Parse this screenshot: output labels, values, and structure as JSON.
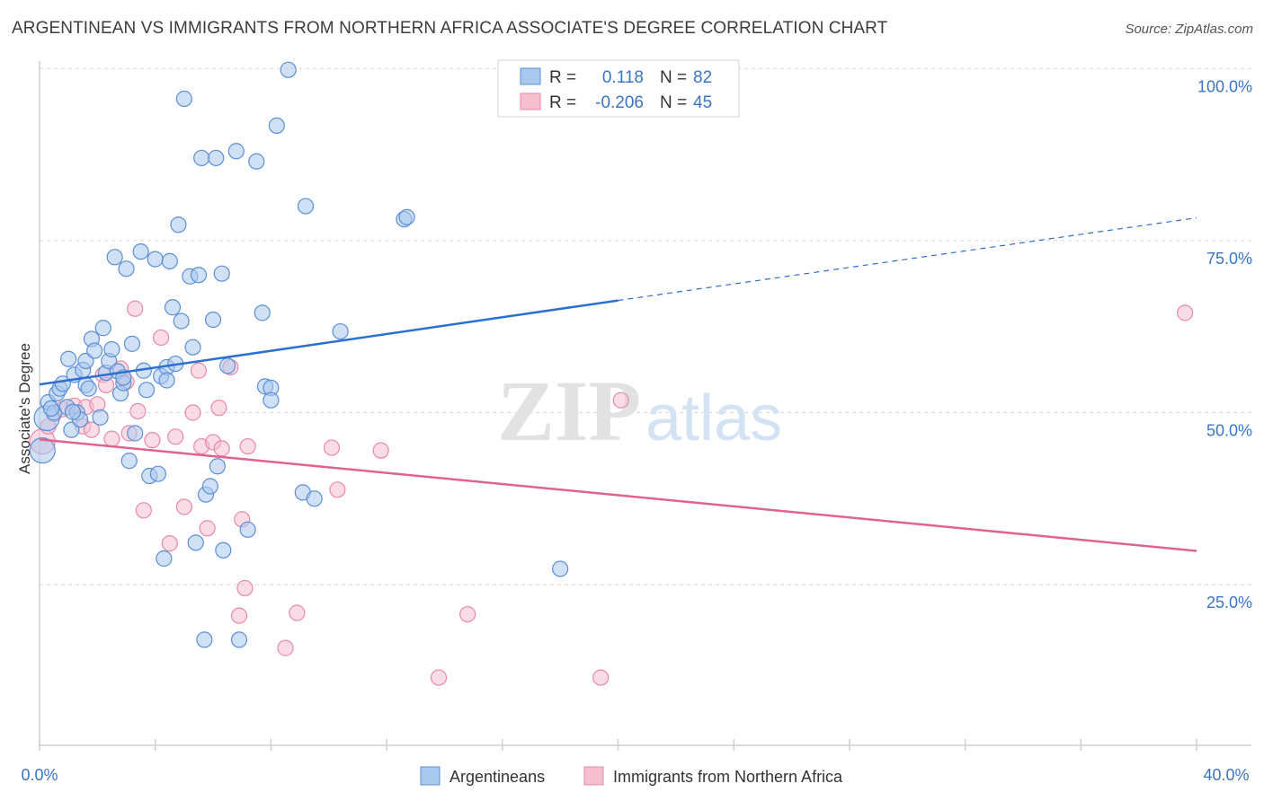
{
  "header": {
    "title": "ARGENTINEAN VS IMMIGRANTS FROM NORTHERN AFRICA ASSOCIATE'S DEGREE CORRELATION CHART",
    "source": "Source: ZipAtlas.com"
  },
  "watermark": {
    "zip": "ZIP",
    "atlas": "atlas"
  },
  "legend_box": {
    "rows": [
      {
        "r_label": "R =",
        "r_value": "0.118",
        "n_label": "N =",
        "n_value": "82"
      },
      {
        "r_label": "R =",
        "r_value": "-0.206",
        "n_label": "N =",
        "n_value": "45"
      }
    ]
  },
  "bottom_legend": {
    "items": [
      "Argentineans",
      "Immigrants from Northern Africa"
    ]
  },
  "colors": {
    "blue_fill": "#a9c8ee",
    "blue_stroke": "#5b8fd6",
    "blue_line": "#2b6fd1",
    "pink_fill": "#f6bfd0",
    "pink_stroke": "#e889a8",
    "pink_line": "#e0628e",
    "tick_text": "#3a74c4",
    "grid": "#d8d8d8"
  },
  "chart_data": {
    "type": "scatter",
    "title": "ARGENTINEAN VS IMMIGRANTS FROM NORTHERN AFRICA ASSOCIATE'S DEGREE CORRELATION CHART",
    "xlabel": "",
    "ylabel": "Associate's Degree",
    "xlim": [
      0,
      40
    ],
    "ylim": [
      0,
      100
    ],
    "x_tick_labels": [
      "0.0%",
      "40.0%"
    ],
    "y_ticks": [
      25,
      50,
      75,
      100
    ],
    "y_tick_labels": [
      "25.0%",
      "50.0%",
      "75.0%",
      "100.0%"
    ],
    "grid": true,
    "legend_position": "top-center",
    "series": [
      {
        "name": "Argentineans",
        "r": 0.118,
        "n": 82,
        "trend": {
          "x0": 0,
          "y0": 54.1,
          "x1": 20,
          "y1": 66.3,
          "dash_to_x": 40,
          "dash_to_y": 78.3
        },
        "points": [
          [
            0.1,
            44.5
          ],
          [
            0.25,
            49.2
          ],
          [
            0.3,
            51.5
          ],
          [
            0.5,
            50.0
          ],
          [
            0.6,
            52.8
          ],
          [
            0.7,
            53.5
          ],
          [
            0.8,
            54.2
          ],
          [
            0.95,
            50.8
          ],
          [
            1.0,
            57.8
          ],
          [
            1.1,
            47.5
          ],
          [
            1.2,
            55.5
          ],
          [
            1.3,
            50.0
          ],
          [
            1.4,
            49.0
          ],
          [
            1.5,
            56.2
          ],
          [
            1.6,
            54.0
          ],
          [
            1.6,
            57.5
          ],
          [
            1.8,
            60.7
          ],
          [
            1.9,
            59.0
          ],
          [
            2.1,
            49.3
          ],
          [
            2.2,
            62.3
          ],
          [
            2.3,
            55.8
          ],
          [
            2.4,
            57.5
          ],
          [
            2.5,
            59.2
          ],
          [
            2.6,
            72.6
          ],
          [
            2.7,
            56.0
          ],
          [
            2.8,
            52.8
          ],
          [
            2.9,
            54.3
          ],
          [
            3.0,
            70.9
          ],
          [
            3.1,
            43.0
          ],
          [
            3.2,
            60.0
          ],
          [
            3.3,
            47.0
          ],
          [
            3.5,
            73.4
          ],
          [
            3.6,
            56.1
          ],
          [
            3.7,
            53.3
          ],
          [
            3.8,
            40.8
          ],
          [
            4.0,
            72.3
          ],
          [
            4.1,
            41.1
          ],
          [
            4.2,
            55.3
          ],
          [
            4.3,
            28.8
          ],
          [
            4.4,
            56.6
          ],
          [
            4.5,
            72.0
          ],
          [
            4.6,
            65.3
          ],
          [
            4.7,
            57.1
          ],
          [
            4.8,
            77.3
          ],
          [
            4.9,
            63.3
          ],
          [
            5.0,
            95.6
          ],
          [
            5.2,
            69.8
          ],
          [
            5.3,
            59.5
          ],
          [
            5.4,
            31.1
          ],
          [
            5.5,
            70.0
          ],
          [
            5.6,
            87.0
          ],
          [
            5.7,
            17.0
          ],
          [
            5.75,
            38.1
          ],
          [
            5.9,
            39.3
          ],
          [
            6.0,
            63.5
          ],
          [
            6.1,
            87.0
          ],
          [
            6.15,
            42.2
          ],
          [
            6.3,
            70.2
          ],
          [
            6.35,
            30.0
          ],
          [
            6.5,
            56.8
          ],
          [
            6.8,
            88.0
          ],
          [
            6.9,
            17.0
          ],
          [
            7.2,
            33.0
          ],
          [
            7.5,
            86.5
          ],
          [
            7.7,
            64.5
          ],
          [
            7.8,
            53.8
          ],
          [
            8.0,
            53.6
          ],
          [
            8.0,
            51.8
          ],
          [
            8.2,
            91.7
          ],
          [
            8.6,
            99.8
          ],
          [
            9.1,
            38.4
          ],
          [
            9.2,
            80.0
          ],
          [
            9.5,
            37.5
          ],
          [
            10.4,
            61.8
          ],
          [
            12.6,
            78.1
          ],
          [
            12.7,
            78.4
          ],
          [
            18.0,
            27.3
          ],
          [
            0.4,
            50.6
          ],
          [
            1.7,
            53.5
          ],
          [
            2.9,
            55.1
          ],
          [
            4.4,
            54.7
          ],
          [
            1.15,
            50.1
          ]
        ]
      },
      {
        "name": "Immigrants from Northern Africa",
        "r": -0.206,
        "n": 45,
        "trend": {
          "x0": 0,
          "y0": 46.1,
          "x1": 40,
          "y1": 29.9
        },
        "points": [
          [
            0.1,
            45.8
          ],
          [
            0.3,
            48.0
          ],
          [
            0.5,
            49.8
          ],
          [
            0.8,
            50.5
          ],
          [
            1.2,
            51.0
          ],
          [
            1.5,
            48.0
          ],
          [
            1.6,
            50.8
          ],
          [
            1.8,
            47.5
          ],
          [
            2.0,
            51.2
          ],
          [
            2.2,
            55.5
          ],
          [
            2.3,
            54.0
          ],
          [
            2.5,
            46.2
          ],
          [
            2.8,
            56.4
          ],
          [
            3.0,
            54.5
          ],
          [
            3.1,
            47.0
          ],
          [
            3.3,
            65.1
          ],
          [
            3.4,
            50.2
          ],
          [
            3.6,
            35.8
          ],
          [
            3.9,
            46.0
          ],
          [
            4.2,
            60.9
          ],
          [
            4.5,
            31.0
          ],
          [
            4.7,
            46.5
          ],
          [
            5.0,
            36.3
          ],
          [
            5.3,
            50.0
          ],
          [
            5.5,
            56.1
          ],
          [
            5.6,
            45.1
          ],
          [
            5.8,
            33.2
          ],
          [
            6.0,
            45.7
          ],
          [
            6.2,
            50.7
          ],
          [
            6.3,
            44.8
          ],
          [
            6.6,
            56.6
          ],
          [
            6.9,
            20.5
          ],
          [
            7.0,
            34.5
          ],
          [
            7.1,
            24.5
          ],
          [
            7.2,
            45.1
          ],
          [
            8.5,
            15.8
          ],
          [
            8.9,
            20.9
          ],
          [
            10.1,
            44.9
          ],
          [
            10.3,
            38.8
          ],
          [
            11.8,
            44.5
          ],
          [
            13.8,
            11.5
          ],
          [
            14.8,
            20.7
          ],
          [
            19.4,
            11.5
          ],
          [
            20.1,
            51.8
          ],
          [
            39.6,
            64.5
          ]
        ]
      }
    ]
  }
}
